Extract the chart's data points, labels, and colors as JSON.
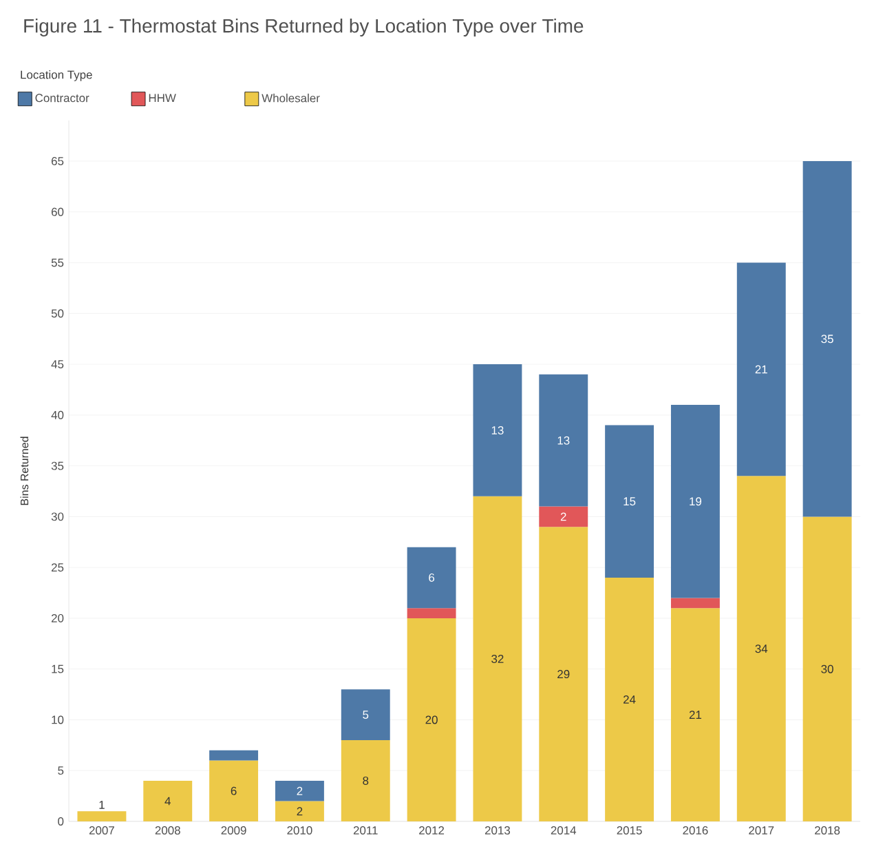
{
  "chart_data": {
    "type": "bar",
    "title": "Figure 11 - Thermostat Bins Returned by Location Type over Time",
    "legend_title": "Location Type",
    "ylabel": "Bins Returned",
    "categories": [
      "2007",
      "2008",
      "2009",
      "2010",
      "2011",
      "2012",
      "2013",
      "2014",
      "2015",
      "2016",
      "2017",
      "2018"
    ],
    "stacked": true,
    "series": [
      {
        "name": "Wholesaler",
        "color": "#edc948",
        "values": [
          1,
          4,
          6,
          2,
          8,
          20,
          32,
          29,
          24,
          21,
          34,
          30
        ],
        "value_labels": [
          "1",
          "4",
          "6",
          "2",
          "8",
          "20",
          "32",
          "29",
          "24",
          "21",
          "34",
          "30"
        ]
      },
      {
        "name": "HHW",
        "color": "#e15759",
        "values": [
          null,
          null,
          null,
          null,
          null,
          1,
          null,
          2,
          null,
          1,
          null,
          null
        ],
        "value_labels": [
          null,
          null,
          null,
          null,
          null,
          null,
          null,
          "2",
          null,
          null,
          null,
          null
        ]
      },
      {
        "name": "Contractor",
        "color": "#4e79a7",
        "values": [
          null,
          null,
          1,
          2,
          5,
          6,
          13,
          13,
          15,
          19,
          21,
          35
        ],
        "value_labels": [
          null,
          null,
          null,
          "2",
          "5",
          "6",
          "13",
          "13",
          "15",
          "19",
          "21",
          "35"
        ]
      }
    ],
    "ylim": [
      0,
      69
    ],
    "yticks": [
      0,
      5,
      10,
      15,
      20,
      25,
      30,
      35,
      40,
      45,
      50,
      55,
      60,
      65
    ],
    "grid": "y",
    "legend": "top left"
  }
}
